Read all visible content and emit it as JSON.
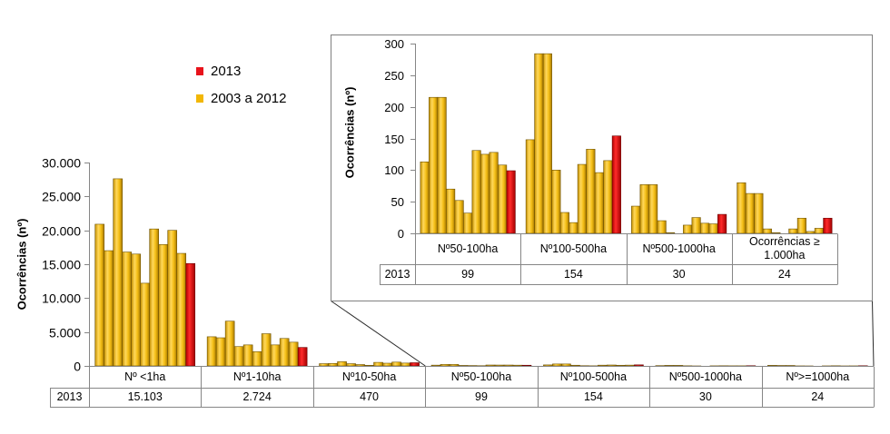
{
  "chart_data": [
    {
      "type": "bar",
      "ylabel": "Ocorrências (nº)",
      "ylim": [
        0,
        30000
      ],
      "yticks": [
        0,
        5000,
        10000,
        15000,
        20000,
        25000,
        30000
      ],
      "ytick_labels": [
        "0",
        "5.000",
        "10.000",
        "15.000",
        "20.000",
        "25.000",
        "30.000"
      ],
      "categories": [
        "Nº <1ha",
        "Nº1-10ha",
        "Nº10-50ha",
        "Nº50-100ha",
        "Nº100-500ha",
        "Nº500-1000ha",
        "Nº>=1000ha"
      ],
      "series": [
        {
          "name": "2003 a 2012",
          "color": "#f2b705",
          "values": [
            [
              20900,
              17000,
              27600,
              16800,
              16500,
              12200,
              20200,
              17900,
              20000,
              16600
            ],
            [
              4300,
              4150,
              6600,
              2850,
              3100,
              2100,
              4750,
              3100,
              4050,
              3500
            ],
            [
              330,
              360,
              620,
              330,
              200,
              90,
              520,
              400,
              560,
              420
            ],
            [
              113,
              215,
              215,
              70,
              52,
              32,
              131,
              125,
              128,
              108
            ],
            [
              148,
              284,
              284,
              100,
              33,
              17,
              109,
              133,
              96,
              115
            ],
            [
              43,
              77,
              77,
              20,
              1,
              0,
              13,
              25,
              16,
              15
            ],
            [
              80,
              63,
              63,
              7,
              1,
              0,
              7,
              24,
              3,
              8
            ]
          ]
        },
        {
          "name": "2013",
          "color": "#e8131b",
          "values": [
            15103,
            2724,
            470,
            99,
            154,
            30,
            24
          ]
        }
      ],
      "data_table": {
        "row_label": "2013",
        "values": [
          "15.103",
          "2.724",
          "470",
          "99",
          "154",
          "30",
          "24"
        ]
      },
      "legend_position": "top-left",
      "grid": false
    },
    {
      "type": "bar",
      "ylabel": "Ocorrências (nº)",
      "ylim": [
        0,
        300
      ],
      "yticks": [
        0,
        50,
        100,
        150,
        200,
        250,
        300
      ],
      "ytick_labels": [
        "0",
        "50",
        "100",
        "150",
        "200",
        "250",
        "300"
      ],
      "categories": [
        "Nº50-100ha",
        "Nº100-500ha",
        "Nº500-1000ha",
        "Ocorrências ≥ 1.000ha"
      ],
      "series": [
        {
          "color": "#f2b705",
          "values": [
            [
              113,
              215,
              215,
              70,
              52,
              32,
              131,
              125,
              128,
              108
            ],
            [
              148,
              284,
              284,
              100,
              33,
              17,
              109,
              133,
              96,
              115
            ],
            [
              43,
              77,
              77,
              20,
              1,
              0,
              13,
              25,
              16,
              15
            ],
            [
              80,
              63,
              63,
              7,
              1,
              0,
              7,
              24,
              3,
              8
            ]
          ]
        },
        {
          "color": "#e8131b",
          "values": [
            99,
            154,
            30,
            24
          ]
        }
      ],
      "data_table": {
        "row_label": "2013",
        "values": [
          "99",
          "154",
          "30",
          "24"
        ]
      },
      "grid": false
    }
  ]
}
